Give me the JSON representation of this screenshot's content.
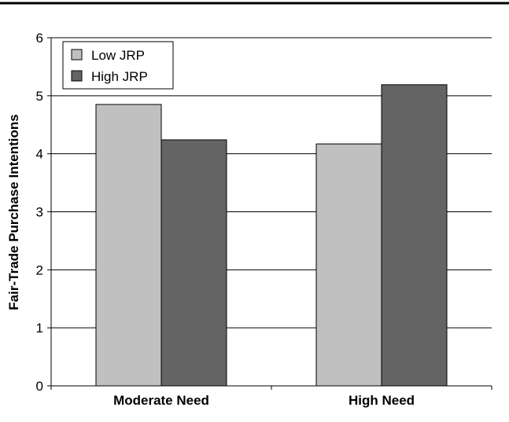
{
  "chart_data": {
    "type": "bar",
    "title": "",
    "xlabel": "",
    "ylabel": "Fair-Trade Purchase Intentions",
    "ylim": [
      0,
      6
    ],
    "yticks": [
      0,
      1,
      2,
      3,
      4,
      5,
      6
    ],
    "grid": true,
    "legend_position": "top-left",
    "categories": [
      "Moderate Need",
      "High Need"
    ],
    "series": [
      {
        "name": "Low JRP",
        "values": [
          4.85,
          4.17
        ],
        "color": "#c0c0c0"
      },
      {
        "name": "High JRP",
        "values": [
          4.24,
          5.19
        ],
        "color": "#646464"
      }
    ]
  }
}
